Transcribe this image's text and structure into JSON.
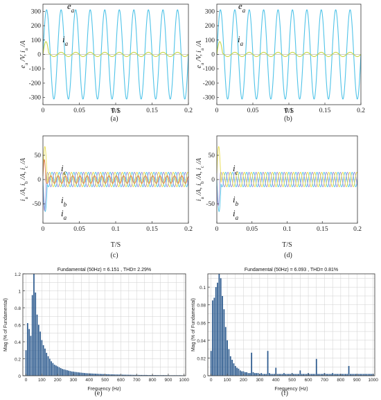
{
  "chart_data": [
    {
      "id": "a",
      "type": "line",
      "panel_label": "(a)",
      "xlabel": "T/S",
      "ylabel": "e_a /V, i_a /A",
      "xlim": [
        0,
        0.2
      ],
      "ylim": [
        -350,
        350
      ],
      "xticks": [
        0,
        0.05,
        0.1,
        0.15,
        0.2
      ],
      "xtick_labels": [
        "0",
        "0.05",
        "0.1",
        "0.15",
        "0.2"
      ],
      "yticks": [
        -300,
        -200,
        -100,
        0,
        100,
        200,
        300
      ],
      "ytick_labels": [
        "-300",
        "-200",
        "-100",
        "0",
        "100",
        "200",
        "300"
      ],
      "series": [
        {
          "name": "e_a",
          "kind": "sine",
          "amplitude": 311,
          "frequency_hz": 50,
          "phase_deg": 0,
          "color": "#4fc3e8"
        },
        {
          "name": "i_a",
          "kind": "sine",
          "amplitude": 15,
          "frequency_hz": 50,
          "phase_deg": 0,
          "color": "#c8d645",
          "transient": {
            "peak": 75,
            "duration_s": 0.008
          }
        }
      ],
      "annotations": [
        {
          "letter": "e",
          "subscript": "a"
        },
        {
          "letter": "i",
          "subscript": "a"
        }
      ]
    },
    {
      "id": "b",
      "type": "line",
      "panel_label": "(b)",
      "xlabel": "T/S",
      "ylabel": "e_a /V, i_a /A",
      "xlim": [
        0,
        0.2
      ],
      "ylim": [
        -350,
        350
      ],
      "xticks": [
        0,
        0.05,
        0.1,
        0.15,
        0.2
      ],
      "xtick_labels": [
        "0",
        "0.05",
        "0.1",
        "0.15",
        "0.2"
      ],
      "yticks": [
        -300,
        -200,
        -100,
        0,
        100,
        200,
        300
      ],
      "ytick_labels": [
        "-300",
        "-200",
        "-100",
        "0",
        "100",
        "200",
        "300"
      ],
      "series": [
        {
          "name": "e_a",
          "kind": "sine",
          "amplitude": 311,
          "frequency_hz": 50,
          "phase_deg": 0,
          "color": "#4fc3e8"
        },
        {
          "name": "i_a",
          "kind": "sine",
          "amplitude": 15,
          "frequency_hz": 50,
          "phase_deg": 0,
          "color": "#c8d645",
          "transient": {
            "peak": 75,
            "duration_s": 0.008
          }
        }
      ],
      "annotations": [
        {
          "letter": "e",
          "subscript": "a"
        },
        {
          "letter": "i",
          "subscript": "a"
        }
      ]
    },
    {
      "id": "c",
      "type": "line",
      "panel_label": "(c)",
      "xlabel": "T/S",
      "ylabel": "i_a /A, i_b /A, i_c /A",
      "xlim": [
        0,
        0.2
      ],
      "ylim": [
        -90,
        90
      ],
      "xticks": [
        0,
        0.05,
        0.1,
        0.15,
        0.2
      ],
      "xtick_labels": [
        "0",
        "0.05",
        "0.1",
        "0.15",
        "0.2"
      ],
      "yticks": [
        -50,
        0,
        50
      ],
      "ytick_labels": [
        "-50",
        "0",
        "50"
      ],
      "series": [
        {
          "name": "i_a",
          "kind": "sine",
          "amplitude": 15,
          "frequency_hz": 100,
          "phase_deg": 0,
          "color": "#4fc3e8",
          "transient": {
            "peak": -80,
            "duration_s": 0.006
          }
        },
        {
          "name": "i_b",
          "kind": "sine",
          "amplitude": 15,
          "frequency_hz": 100,
          "phase_deg": -120,
          "color": "#9b8ed6",
          "transient": {
            "peak": -55,
            "duration_s": 0.005
          }
        },
        {
          "name": "i_c",
          "kind": "sine",
          "amplitude": 15,
          "frequency_hz": 100,
          "phase_deg": 120,
          "color": "#e8dc4a",
          "transient": {
            "peak": 78,
            "duration_s": 0.006
          }
        },
        {
          "name": "",
          "kind": "sine",
          "amplitude": 8,
          "frequency_hz": 100,
          "phase_deg": 60,
          "color": "#e07a3c",
          "transient": {
            "peak": 35,
            "duration_s": 0.004
          }
        }
      ],
      "annotations": [
        {
          "letter": "i",
          "subscript": "c"
        },
        {
          "letter": "i",
          "subscript": "b"
        },
        {
          "letter": "i",
          "subscript": "a"
        }
      ]
    },
    {
      "id": "d",
      "type": "line",
      "panel_label": "(d)",
      "xlabel": "T/S",
      "ylabel": "i_a /A, i_b /A, i_c /A",
      "xlim": [
        0,
        0.2
      ],
      "ylim": [
        -90,
        90
      ],
      "xticks": [
        0,
        0.05,
        0.1,
        0.15,
        0.2
      ],
      "xtick_labels": [
        "0",
        "0.05",
        "0.1",
        "0.15",
        "0.2"
      ],
      "yticks": [
        -50,
        0,
        50
      ],
      "ytick_labels": [
        "-50",
        "0",
        "50"
      ],
      "series": [
        {
          "name": "i_a",
          "kind": "sine",
          "amplitude": 15,
          "frequency_hz": 100,
          "phase_deg": 0,
          "color": "#4fc3e8",
          "transient": {
            "peak": -80,
            "duration_s": 0.006
          }
        },
        {
          "name": "i_b",
          "kind": "sine",
          "amplitude": 15,
          "frequency_hz": 100,
          "phase_deg": -120,
          "color": "#9b8ed6",
          "transient": {
            "peak": -45,
            "duration_s": 0.005
          }
        },
        {
          "name": "i_c",
          "kind": "sine",
          "amplitude": 15,
          "frequency_hz": 100,
          "phase_deg": 120,
          "color": "#e8dc4a",
          "transient": {
            "peak": 78,
            "duration_s": 0.006
          }
        }
      ],
      "annotations": [
        {
          "letter": "i",
          "subscript": "c"
        },
        {
          "letter": "i",
          "subscript": "b"
        },
        {
          "letter": "i",
          "subscript": "a"
        }
      ]
    },
    {
      "id": "e",
      "type": "bar",
      "panel_label": "(e)",
      "title": "Fundamental (50Hz) = 6.151 , THD= 2.29%",
      "xlabel": "Frequency (Hz)",
      "ylabel": "Mag (% of Fundamental)",
      "xlim": [
        -20,
        1010
      ],
      "ylim": [
        0,
        1.2
      ],
      "xticks": [
        0,
        100,
        200,
        300,
        400,
        500,
        600,
        700,
        800,
        900,
        1000
      ],
      "xtick_labels": [
        "0",
        "100",
        "200",
        "300",
        "400",
        "500",
        "600",
        "700",
        "800",
        "900",
        "1000"
      ],
      "yticks": [
        0,
        0.2,
        0.4,
        0.6,
        0.8,
        1.0,
        1.2
      ],
      "ytick_labels": [
        "0",
        "0.2",
        "0.4",
        "0.6",
        "0.8",
        "1",
        "1.2"
      ],
      "bar_color": "#2c5a8e",
      "bin_width_hz": 10,
      "frequencies_hz": [
        0,
        10,
        20,
        30,
        40,
        50,
        60,
        70,
        80,
        90,
        100,
        110,
        120,
        130,
        140,
        150,
        160,
        170,
        180,
        190,
        200,
        210,
        220,
        230,
        240,
        250,
        260,
        270,
        280,
        290,
        300,
        310,
        320,
        330,
        340,
        350,
        360,
        370,
        380,
        390,
        400,
        410,
        420,
        430,
        440,
        450,
        460,
        470,
        480,
        490,
        500,
        510,
        520,
        530,
        540,
        550,
        560,
        570,
        580,
        590,
        600,
        610,
        620,
        630,
        640,
        650,
        660,
        670,
        680,
        690,
        700,
        710,
        720,
        730,
        740,
        750,
        760,
        770,
        780,
        790,
        800,
        810,
        820,
        830,
        840,
        850,
        860,
        870,
        880,
        890,
        900,
        910,
        920,
        930,
        940,
        950,
        960,
        970,
        980,
        990,
        1000
      ],
      "values": [
        0.3,
        0.62,
        0.55,
        0.47,
        0.95,
        1.2,
        0.98,
        0.72,
        0.6,
        0.52,
        0.42,
        0.36,
        0.32,
        0.27,
        0.23,
        0.2,
        0.17,
        0.15,
        0.13,
        0.12,
        0.11,
        0.1,
        0.09,
        0.08,
        0.075,
        0.07,
        0.065,
        0.06,
        0.055,
        0.05,
        0.048,
        0.045,
        0.043,
        0.04,
        0.038,
        0.036,
        0.034,
        0.032,
        0.03,
        0.029,
        0.028,
        0.027,
        0.026,
        0.025,
        0.024,
        0.023,
        0.022,
        0.021,
        0.02,
        0.02,
        0.019,
        0.018,
        0.018,
        0.017,
        0.016,
        0.016,
        0.015,
        0.015,
        0.014,
        0.014,
        0.013,
        0.013,
        0.012,
        0.012,
        0.012,
        0.011,
        0.011,
        0.011,
        0.01,
        0.01,
        0.01,
        0.01,
        0.009,
        0.009,
        0.009,
        0.009,
        0.009,
        0.008,
        0.008,
        0.008,
        0.008,
        0.008,
        0.008,
        0.007,
        0.007,
        0.007,
        0.007,
        0.007,
        0.007,
        0.007,
        0.006,
        0.006,
        0.006,
        0.006,
        0.006,
        0.006,
        0.006,
        0.006,
        0.006,
        0.005,
        0.005
      ]
    },
    {
      "id": "f",
      "type": "bar",
      "panel_label": "(f)",
      "title": "Fundamental (50Hz) = 6.093 , THD= 0.81%",
      "xlabel": "Frequency (Hz)",
      "ylabel": "Mag (% of Fundamental)",
      "xlim": [
        -20,
        1010
      ],
      "ylim": [
        0,
        0.115
      ],
      "xticks": [
        0,
        100,
        200,
        300,
        400,
        500,
        600,
        700,
        800,
        900,
        1000
      ],
      "xtick_labels": [
        "0",
        "100",
        "200",
        "300",
        "400",
        "500",
        "600",
        "700",
        "800",
        "900",
        "1000"
      ],
      "yticks": [
        0,
        0.02,
        0.04,
        0.06,
        0.08,
        0.1
      ],
      "ytick_labels": [
        "0",
        "0.02",
        "0.04",
        "0.06",
        "0.08",
        "0.1"
      ],
      "bar_color": "#2c5a8e",
      "bin_width_hz": 10,
      "frequencies_hz": [
        0,
        10,
        20,
        30,
        40,
        50,
        60,
        70,
        80,
        90,
        100,
        110,
        120,
        130,
        140,
        150,
        160,
        170,
        180,
        190,
        200,
        210,
        220,
        230,
        240,
        250,
        260,
        270,
        280,
        290,
        300,
        310,
        320,
        330,
        340,
        350,
        360,
        370,
        380,
        390,
        400,
        410,
        420,
        430,
        440,
        450,
        460,
        470,
        480,
        490,
        500,
        510,
        520,
        530,
        540,
        550,
        560,
        570,
        580,
        590,
        600,
        610,
        620,
        630,
        640,
        650,
        660,
        670,
        680,
        690,
        700,
        710,
        720,
        730,
        740,
        750,
        760,
        770,
        780,
        790,
        800,
        810,
        820,
        830,
        840,
        850,
        860,
        870,
        880,
        890,
        900,
        910,
        920,
        930,
        940,
        950,
        960,
        970,
        980,
        990,
        1000
      ],
      "values": [
        0.028,
        0.085,
        0.088,
        0.1,
        0.105,
        0.115,
        0.11,
        0.09,
        0.075,
        0.055,
        0.04,
        0.03,
        0.022,
        0.018,
        0.014,
        0.011,
        0.009,
        0.008,
        0.006,
        0.005,
        0.005,
        0.004,
        0.004,
        0.003,
        0.003,
        0.026,
        0.004,
        0.003,
        0.003,
        0.003,
        0.002,
        0.003,
        0.002,
        0.002,
        0.002,
        0.028,
        0.003,
        0.002,
        0.002,
        0.002,
        0.009,
        0.002,
        0.002,
        0.002,
        0.002,
        0.003,
        0.002,
        0.002,
        0.002,
        0.002,
        0.003,
        0.002,
        0.002,
        0.002,
        0.002,
        0.006,
        0.002,
        0.002,
        0.002,
        0.002,
        0.003,
        0.002,
        0.002,
        0.002,
        0.002,
        0.019,
        0.002,
        0.002,
        0.002,
        0.002,
        0.003,
        0.002,
        0.002,
        0.002,
        0.002,
        0.003,
        0.002,
        0.002,
        0.002,
        0.002,
        0.002,
        0.002,
        0.002,
        0.002,
        0.002,
        0.011,
        0.002,
        0.002,
        0.002,
        0.002,
        0.002,
        0.002,
        0.002,
        0.002,
        0.002,
        0.002,
        0.002,
        0.002,
        0.002,
        0.002,
        0.002
      ]
    }
  ]
}
